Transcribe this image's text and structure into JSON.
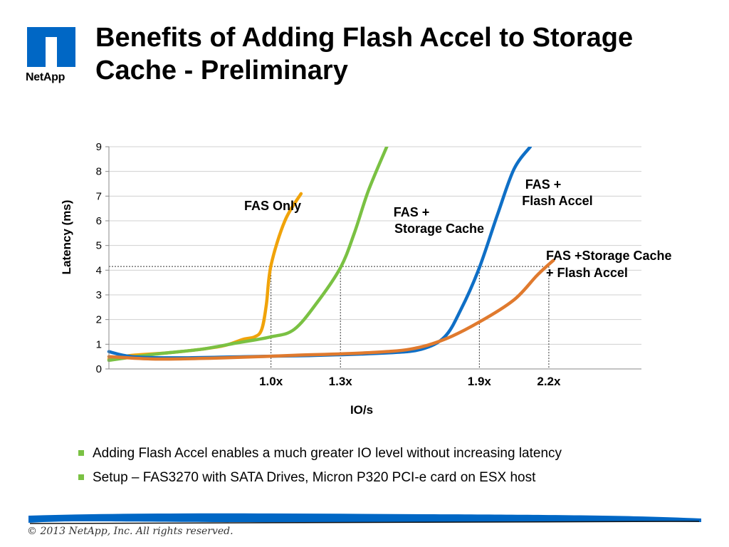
{
  "logo": {
    "text": "NetApp",
    "color": "#0067c5"
  },
  "title": "Benefits of Adding Flash Accel to Storage Cache - Preliminary",
  "chart_data": {
    "type": "line",
    "xlabel": "IO/s",
    "ylabel": "Latency (ms)",
    "ylim": [
      0,
      9
    ],
    "y_ticks": [
      "0",
      "1",
      "2",
      "3",
      "4",
      "5",
      "6",
      "7",
      "8",
      "9"
    ],
    "grid": "horizontal",
    "x_range": [
      0.3,
      2.6
    ],
    "x_reference_labels": [
      {
        "label": "1.0x",
        "x": 1.0
      },
      {
        "label": "1.3x",
        "x": 1.3
      },
      {
        "label": "1.9x",
        "x": 1.9
      },
      {
        "label": "2.2x",
        "x": 2.2
      }
    ],
    "reference_latency": 4.15,
    "series": [
      {
        "name": "FAS Only",
        "color": "#f0a30a",
        "x": [
          0.3,
          0.4,
          0.55,
          0.7,
          0.8,
          0.88,
          0.93,
          0.96,
          0.98,
          1.0,
          1.06,
          1.13
        ],
        "y": [
          0.4,
          0.55,
          0.65,
          0.8,
          0.95,
          1.2,
          1.3,
          1.6,
          2.6,
          4.2,
          6.0,
          7.1
        ]
      },
      {
        "name": "FAS + Storage Cache",
        "color": "#7ac143",
        "x": [
          0.3,
          0.5,
          0.7,
          0.85,
          1.0,
          1.1,
          1.2,
          1.3,
          1.36,
          1.42,
          1.5
        ],
        "y": [
          0.35,
          0.6,
          0.8,
          1.05,
          1.3,
          1.6,
          2.7,
          4.1,
          5.5,
          7.2,
          9.0
        ]
      },
      {
        "name": "FAS + Flash Accel",
        "color": "#0f6fc6",
        "x": [
          0.3,
          0.4,
          0.6,
          0.9,
          1.2,
          1.5,
          1.65,
          1.75,
          1.82,
          1.9,
          1.98,
          2.05,
          2.12
        ],
        "y": [
          0.7,
          0.5,
          0.45,
          0.5,
          0.55,
          0.65,
          0.8,
          1.3,
          2.4,
          4.1,
          6.3,
          8.1,
          9.0
        ]
      },
      {
        "name": "FAS +Storage Cache + Flash Accel",
        "color": "#e07a2e",
        "x": [
          0.3,
          0.5,
          0.8,
          1.1,
          1.4,
          1.6,
          1.75,
          1.9,
          2.05,
          2.15,
          2.22
        ],
        "y": [
          0.5,
          0.4,
          0.45,
          0.55,
          0.65,
          0.8,
          1.2,
          1.9,
          2.8,
          3.8,
          4.4
        ]
      }
    ],
    "annotations": [
      {
        "series": "FAS Only",
        "lines": [
          "FAS Only"
        ]
      },
      {
        "series": "FAS + Storage Cache",
        "lines": [
          "FAS +",
          "Storage Cache"
        ]
      },
      {
        "series": "FAS + Flash Accel",
        "lines": [
          "FAS +",
          "Flash Accel"
        ]
      },
      {
        "series": "FAS +Storage Cache + Flash Accel",
        "lines": [
          "FAS +Storage Cache",
          "+ Flash Accel"
        ]
      }
    ]
  },
  "bullets": [
    "Adding Flash Accel enables a much greater IO level without increasing latency",
    "Setup – FAS3270 with SATA Drives, Micron P320 PCI-e card on ESX host"
  ],
  "bullet_color": "#7ac143",
  "footer": {
    "copyright": "© 2013 NetApp, Inc. All rights reserved.",
    "bar_color": "#0067c5"
  }
}
